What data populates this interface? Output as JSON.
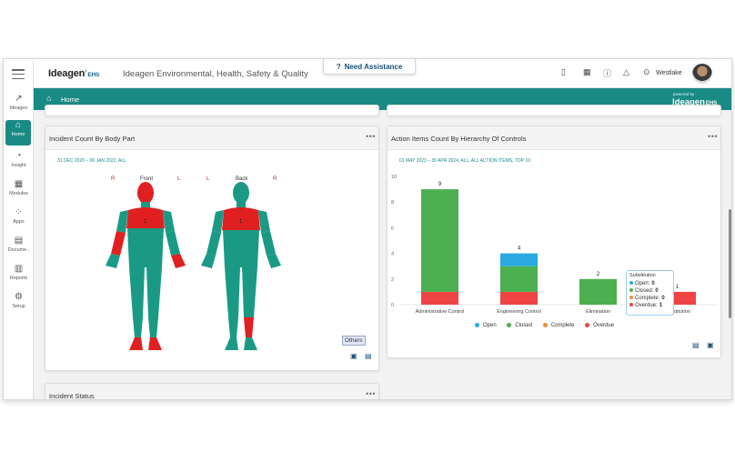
{
  "rail": {
    "items": [
      {
        "icon": "ideagen-icon",
        "glyph": "↗",
        "label": "Ideagen"
      },
      {
        "icon": "home-icon",
        "glyph": "⌂",
        "label": "Home"
      },
      {
        "icon": "insight-icon",
        "glyph": "◔",
        "label": "Insight"
      },
      {
        "icon": "modules-icon",
        "glyph": "▦",
        "label": "Modules"
      },
      {
        "icon": "apps-icon",
        "glyph": "⁘",
        "label": "Apps"
      },
      {
        "icon": "documents-icon",
        "glyph": "▤",
        "label": "Docume.."
      },
      {
        "icon": "reports-icon",
        "glyph": "▥",
        "label": "Reports"
      },
      {
        "icon": "setup-icon",
        "glyph": "⚙",
        "label": "Setup"
      }
    ]
  },
  "header": {
    "logo_text": "Ideagen",
    "logo_suffix": "EHS",
    "app_title": "Ideagen Environmental, Health, Safety & Quality",
    "assist_label": "Need Assistance",
    "site_name": "Westlake"
  },
  "breadcrumb": {
    "home_label": "Home",
    "powered_by": "powered by",
    "brand": "Ideagen",
    "brand_suffix": "EHS"
  },
  "body_card": {
    "title": "Incident Count By Body Part",
    "subtitle": "31 DEC 2020 – 06 JAN 2022, ALL",
    "labels": {
      "front_r": "R",
      "front": "Front",
      "front_l": "L",
      "back_l": "L",
      "back": "Back",
      "back_r": "R"
    },
    "count": "1",
    "others_label": "Others",
    "colors": {
      "body": "#1a9a85",
      "injury": "#e02020"
    }
  },
  "status_card": {
    "title": "Incident Status"
  },
  "chart_card": {
    "title": "Action Items Count By Hierarchy Of Controls",
    "subtitle": "01 MAY 2023 – 30 APR 2024, ALL, ALL ACTION ITEMS, TOP 10"
  },
  "chart_data": {
    "type": "bar",
    "stacked": true,
    "title": "Action Items Count By Hierarchy Of Controls",
    "categories": [
      "Administrative Control",
      "Engineering Control",
      "Elimination",
      "Substitution"
    ],
    "series": [
      {
        "name": "Open",
        "color": "#2aa9e0",
        "values": [
          0,
          1,
          0,
          0
        ]
      },
      {
        "name": "Closed",
        "color": "#4caf50",
        "values": [
          8,
          2,
          2,
          0
        ]
      },
      {
        "name": "Complete",
        "color": "#f08a3c",
        "values": [
          0,
          0,
          0,
          0
        ]
      },
      {
        "name": "Overdue",
        "color": "#ef4444",
        "values": [
          1,
          1,
          0,
          1
        ]
      }
    ],
    "totals": [
      9,
      4,
      2,
      1
    ],
    "y_ticks": [
      0,
      2,
      4,
      6,
      8,
      10
    ],
    "ylim": [
      0,
      10
    ],
    "grid": false,
    "legend_placement": "bottom"
  },
  "tooltip": {
    "title": "Substitution",
    "rows": [
      {
        "label": "Open:",
        "value": "0",
        "color": "#2aa9e0"
      },
      {
        "label": "Closed:",
        "value": "0",
        "color": "#4caf50"
      },
      {
        "label": "Complete:",
        "value": "0",
        "color": "#f08a3c"
      },
      {
        "label": "Overdue:",
        "value": "1",
        "color": "#ef4444"
      }
    ]
  }
}
